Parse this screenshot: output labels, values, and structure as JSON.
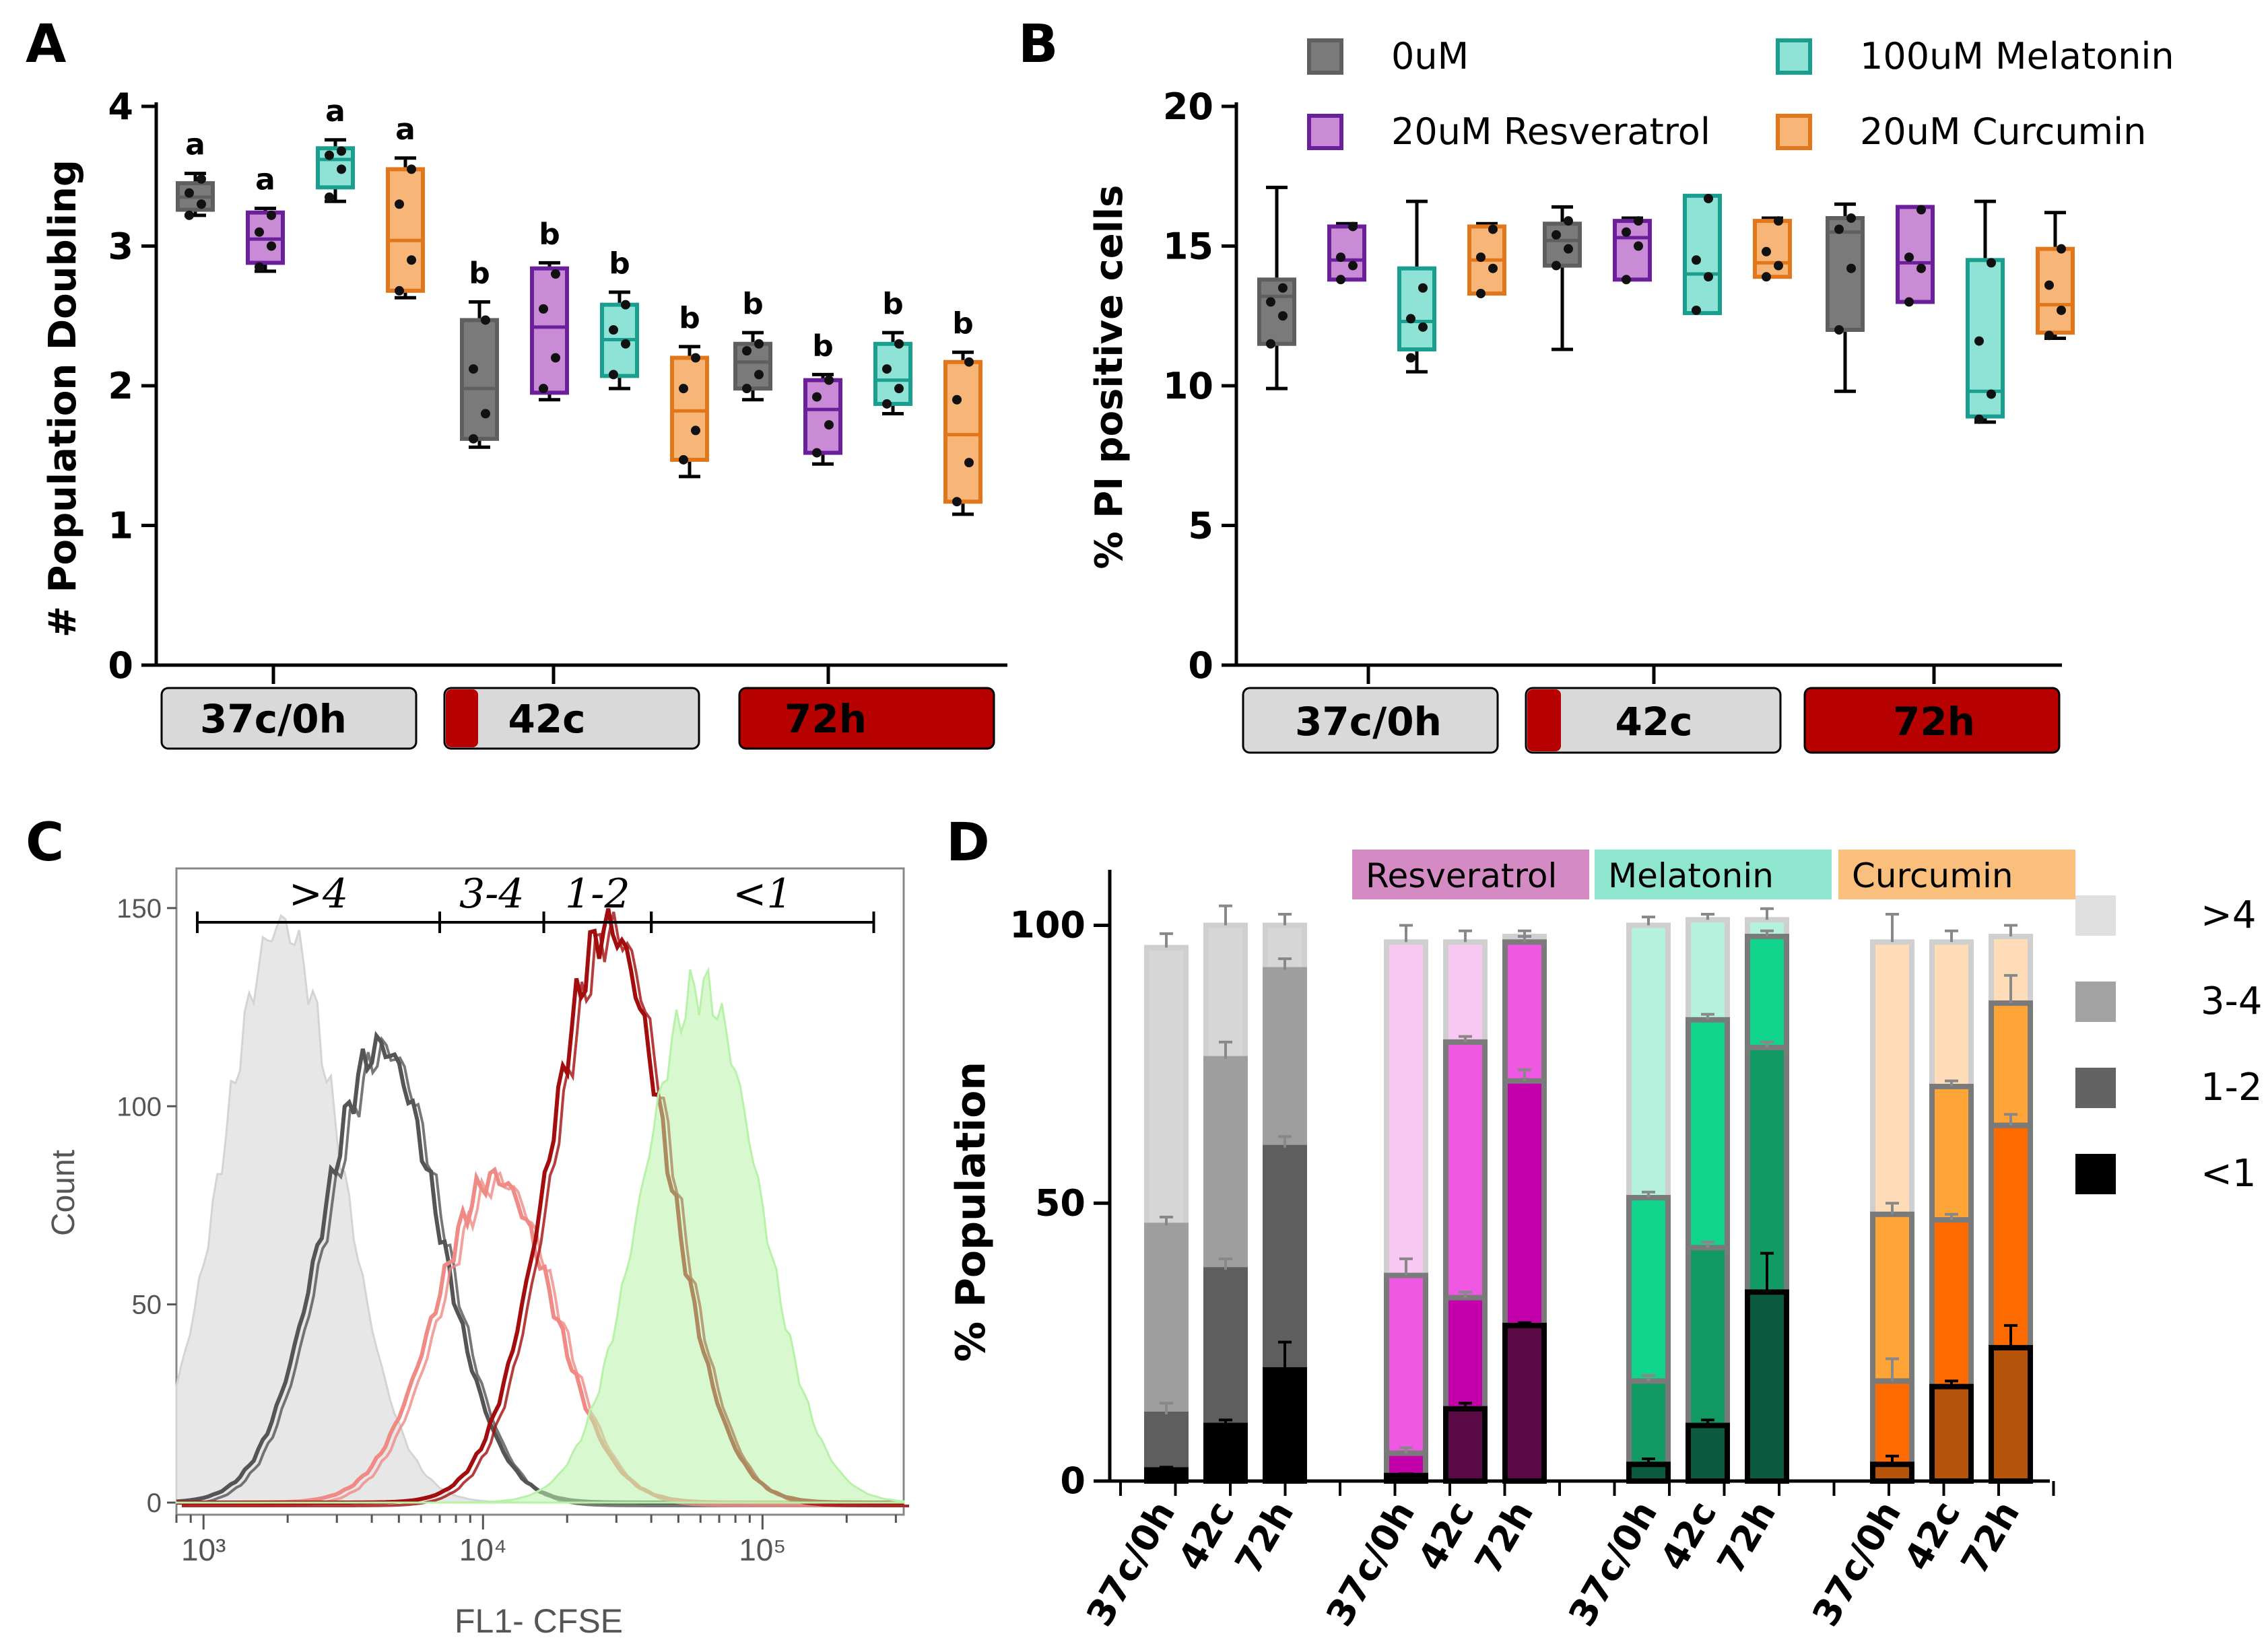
{
  "figure_labels": [
    "A",
    "B",
    "C",
    "D"
  ],
  "legend": {
    "items": [
      {
        "label": "0uM",
        "color": "#5f5f5f",
        "fill": "#7a7a7a"
      },
      {
        "label": "20uM Resveratrol",
        "color": "#6b1f9a",
        "fill": "#c98bd6"
      },
      {
        "label": "100uM Melatonin",
        "color": "#1a9e8f",
        "fill": "#8ee3d6"
      },
      {
        "label": "20uM Curcumin",
        "color": "#e2761a",
        "fill": "#f7b577"
      }
    ]
  },
  "conditions": [
    {
      "label": "37c/0h"
    },
    {
      "label": "42c"
    },
    {
      "label": "72h"
    }
  ],
  "colors": {
    "heat_red": "#b70000",
    "cond_grey": "#d9d9d9"
  },
  "chart_data": [
    {
      "panel": "A",
      "type": "boxplot",
      "ylabel": "# Population Doubling",
      "ylim": [
        0,
        4
      ],
      "yticks": [
        0,
        1,
        2,
        3,
        4
      ],
      "groups": [
        "37c/0h",
        "42c",
        "72h"
      ],
      "series": [
        "0uM",
        "20uM Resveratrol",
        "100uM Melatonin",
        "20uM Curcumin"
      ],
      "boxes": [
        {
          "group": 0,
          "series": 0,
          "min": 3.22,
          "q1": 3.26,
          "median": 3.35,
          "q3": 3.45,
          "max": 3.52,
          "points": [
            3.22,
            3.3,
            3.38,
            3.48
          ],
          "label": "a"
        },
        {
          "group": 0,
          "series": 1,
          "min": 2.82,
          "q1": 2.88,
          "median": 3.05,
          "q3": 3.24,
          "max": 3.27,
          "points": [
            2.85,
            3.0,
            3.1,
            3.22
          ],
          "label": "a"
        },
        {
          "group": 0,
          "series": 2,
          "min": 3.32,
          "q1": 3.42,
          "median": 3.62,
          "q3": 3.7,
          "max": 3.76,
          "points": [
            3.35,
            3.55,
            3.65,
            3.68
          ],
          "label": "a"
        },
        {
          "group": 0,
          "series": 3,
          "min": 2.63,
          "q1": 2.68,
          "median": 3.04,
          "q3": 3.55,
          "max": 3.63,
          "points": [
            2.68,
            2.9,
            3.3,
            3.55
          ],
          "label": "a"
        },
        {
          "group": 1,
          "series": 0,
          "min": 1.56,
          "q1": 1.62,
          "median": 1.98,
          "q3": 2.47,
          "max": 2.6,
          "points": [
            1.62,
            1.8,
            2.12,
            2.47
          ],
          "label": "b"
        },
        {
          "group": 1,
          "series": 1,
          "min": 1.9,
          "q1": 1.95,
          "median": 2.42,
          "q3": 2.84,
          "max": 2.88,
          "points": [
            1.98,
            2.2,
            2.55,
            2.8
          ],
          "label": "b"
        },
        {
          "group": 1,
          "series": 2,
          "min": 1.98,
          "q1": 2.07,
          "median": 2.33,
          "q3": 2.58,
          "max": 2.67,
          "points": [
            2.08,
            2.3,
            2.4,
            2.58
          ],
          "label": "b"
        },
        {
          "group": 1,
          "series": 3,
          "min": 1.35,
          "q1": 1.47,
          "median": 1.82,
          "q3": 2.2,
          "max": 2.28,
          "points": [
            1.47,
            1.68,
            1.98,
            2.2
          ],
          "label": "b"
        },
        {
          "group": 2,
          "series": 0,
          "min": 1.9,
          "q1": 1.98,
          "median": 2.17,
          "q3": 2.3,
          "max": 2.38,
          "points": [
            1.98,
            2.08,
            2.25,
            2.3
          ],
          "label": "b"
        },
        {
          "group": 2,
          "series": 1,
          "min": 1.44,
          "q1": 1.52,
          "median": 1.83,
          "q3": 2.04,
          "max": 2.08,
          "points": [
            1.52,
            1.72,
            1.92,
            2.04
          ],
          "label": "b"
        },
        {
          "group": 2,
          "series": 2,
          "min": 1.8,
          "q1": 1.87,
          "median": 2.04,
          "q3": 2.3,
          "max": 2.38,
          "points": [
            1.87,
            1.98,
            2.12,
            2.3
          ],
          "label": "b"
        },
        {
          "group": 2,
          "series": 3,
          "min": 1.08,
          "q1": 1.17,
          "median": 1.65,
          "q3": 2.17,
          "max": 2.24,
          "points": [
            1.17,
            1.45,
            1.9,
            2.17
          ],
          "label": "b"
        }
      ]
    },
    {
      "panel": "B",
      "type": "boxplot",
      "ylabel": "% PI positive cells",
      "ylim": [
        0,
        20
      ],
      "yticks": [
        0,
        5,
        10,
        15,
        20
      ],
      "groups": [
        "37c/0h",
        "42c",
        "72h"
      ],
      "series": [
        "0uM",
        "20uM Resveratrol",
        "100uM Melatonin",
        "20uM Curcumin"
      ],
      "boxes": [
        {
          "group": 0,
          "series": 0,
          "min": 9.9,
          "q1": 11.5,
          "median": 13.2,
          "q3": 13.8,
          "max": 17.1,
          "points": [
            11.5,
            12.5,
            13.0,
            13.5
          ]
        },
        {
          "group": 0,
          "series": 1,
          "min": 13.8,
          "q1": 13.8,
          "median": 14.5,
          "q3": 15.7,
          "max": 15.8,
          "points": [
            13.8,
            14.3,
            14.6,
            15.7
          ]
        },
        {
          "group": 0,
          "series": 2,
          "min": 10.5,
          "q1": 11.3,
          "median": 12.3,
          "q3": 14.2,
          "max": 16.6,
          "points": [
            11.0,
            12.1,
            12.4,
            13.5
          ]
        },
        {
          "group": 0,
          "series": 3,
          "min": 13.3,
          "q1": 13.3,
          "median": 14.5,
          "q3": 15.7,
          "max": 15.8,
          "points": [
            13.3,
            14.2,
            14.6,
            15.6
          ]
        },
        {
          "group": 1,
          "series": 0,
          "min": 11.3,
          "q1": 14.3,
          "median": 15.2,
          "q3": 15.8,
          "max": 16.4,
          "points": [
            14.3,
            14.9,
            15.4,
            15.9
          ]
        },
        {
          "group": 1,
          "series": 1,
          "min": 13.8,
          "q1": 13.8,
          "median": 15.3,
          "q3": 15.9,
          "max": 16.0,
          "points": [
            13.8,
            15.0,
            15.5,
            15.9
          ]
        },
        {
          "group": 1,
          "series": 2,
          "min": 12.6,
          "q1": 12.6,
          "median": 14.0,
          "q3": 16.8,
          "max": 16.8,
          "points": [
            12.7,
            13.9,
            14.5,
            16.7
          ]
        },
        {
          "group": 1,
          "series": 3,
          "min": 13.9,
          "q1": 13.9,
          "median": 14.4,
          "q3": 15.9,
          "max": 16.0,
          "points": [
            13.9,
            14.3,
            14.8,
            15.9
          ]
        },
        {
          "group": 2,
          "series": 0,
          "min": 9.8,
          "q1": 12.0,
          "median": 15.5,
          "q3": 16.0,
          "max": 16.5,
          "points": [
            12.0,
            14.2,
            15.6,
            16.0
          ]
        },
        {
          "group": 2,
          "series": 1,
          "min": 13.0,
          "q1": 13.0,
          "median": 14.4,
          "q3": 16.4,
          "max": 16.4,
          "points": [
            13.0,
            14.2,
            14.6,
            16.3
          ]
        },
        {
          "group": 2,
          "series": 2,
          "min": 8.7,
          "q1": 8.9,
          "median": 9.8,
          "q3": 14.5,
          "max": 16.6,
          "points": [
            8.8,
            9.7,
            11.6,
            14.4
          ]
        },
        {
          "group": 2,
          "series": 3,
          "min": 11.7,
          "q1": 11.9,
          "median": 12.9,
          "q3": 14.9,
          "max": 16.2,
          "points": [
            11.8,
            12.7,
            13.6,
            14.9
          ]
        }
      ]
    },
    {
      "panel": "C",
      "type": "histogram-overlay",
      "xlabel": "FL1- CFSE",
      "ylabel": "Count",
      "xscale": "log",
      "xlim": [
        800,
        320000
      ],
      "xticks": [
        {
          "value": 1000,
          "label": "10³"
        },
        {
          "value": 10000,
          "label": "10⁴"
        },
        {
          "value": 100000,
          "label": "10⁵"
        }
      ],
      "ylim": [
        0,
        160
      ],
      "yticks": [
        0,
        50,
        100,
        150
      ],
      "generations": [
        {
          "label": ">4",
          "from": 950,
          "to": 7000
        },
        {
          "label": "3-4",
          "from": 7000,
          "to": 16500
        },
        {
          "label": "1-2",
          "from": 16500,
          "to": 40000
        },
        {
          "label": "<1",
          "from": 40000,
          "to": 250000
        }
      ],
      "histograms": [
        {
          "name": "light grey",
          "peak_x": 1900,
          "peak_y": 146,
          "color": "#d4d4d4",
          "filled": true
        },
        {
          "name": "dark grey",
          "peak_x": 4300,
          "peak_y": 115,
          "color": "#555555",
          "filled": false
        },
        {
          "name": "salmon",
          "peak_x": 11000,
          "peak_y": 82,
          "color": "#f08a84",
          "filled": false
        },
        {
          "name": "dark red",
          "peak_x": 28000,
          "peak_y": 145,
          "color": "#a30d0d",
          "filled": false
        },
        {
          "name": "light green",
          "peak_x": 60000,
          "peak_y": 130,
          "color": "#b8f2a8",
          "filled": true
        }
      ]
    },
    {
      "panel": "D",
      "type": "stacked-bar",
      "ylabel": "% Population",
      "ylim": [
        0,
        110
      ],
      "yticks": [
        0,
        50,
        100
      ],
      "legend": [
        ">4",
        "3-4",
        "1-2",
        "<1"
      ],
      "treatment_tags": [
        "Resveratrol",
        "Melatonin",
        "Curcumin"
      ],
      "groups": [
        {
          "name": "0uM",
          "tag": null,
          "tag_color": null,
          "shades": [
            "#000000",
            "#5e5e5e",
            "#9e9e9e",
            "#d6d6d6"
          ],
          "bars": [
            {
              "label": "37c/0h",
              "cum": [
                2,
                12,
                46,
                96
              ],
              "err": [
                0.5,
                2,
                1.5,
                2.5
              ]
            },
            {
              "label": "42c",
              "cum": [
                10,
                38,
                76,
                100
              ],
              "err": [
                1,
                2,
                3,
                3.5
              ]
            },
            {
              "label": "72h",
              "cum": [
                20,
                60,
                92,
                100
              ],
              "err": [
                5,
                2,
                2,
                2
              ]
            }
          ]
        },
        {
          "name": "Resveratrol",
          "tag": "Resveratrol",
          "tag_color": "#d48bc3",
          "shades": [
            "#5a0a45",
            "#c400ab",
            "#ef58e3",
            "#f7c9f2"
          ],
          "bars": [
            {
              "label": "37c/0h",
              "cum": [
                1,
                5,
                37,
                97
              ],
              "err": [
                0.3,
                1,
                3,
                3
              ]
            },
            {
              "label": "42c",
              "cum": [
                13,
                33,
                79,
                97
              ],
              "err": [
                1,
                1,
                1,
                2
              ]
            },
            {
              "label": "72h",
              "cum": [
                28,
                72,
                97,
                98
              ],
              "err": [
                0.5,
                2,
                1,
                1
              ]
            }
          ]
        },
        {
          "name": "Melatonin",
          "tag": "Melatonin",
          "tag_color": "#8ee6cf",
          "shades": [
            "#0c5a3f",
            "#119a63",
            "#10d38c",
            "#b5f2dd"
          ],
          "bars": [
            {
              "label": "37c/0h",
              "cum": [
                3,
                18,
                51,
                100
              ],
              "err": [
                1,
                1,
                1,
                1.5
              ]
            },
            {
              "label": "42c",
              "cum": [
                10,
                42,
                83,
                101
              ],
              "err": [
                1,
                1,
                1,
                1
              ]
            },
            {
              "label": "72h",
              "cum": [
                34,
                78,
                98,
                101
              ],
              "err": [
                7,
                1,
                1,
                2
              ]
            }
          ]
        },
        {
          "name": "Curcumin",
          "tag": "Curcumin",
          "tag_color": "#fbbf7d",
          "shades": [
            "#b45309",
            "#ff6a00",
            "#ffa436",
            "#ffdcb8"
          ],
          "bars": [
            {
              "label": "37c/0h",
              "cum": [
                3,
                18,
                48,
                97
              ],
              "err": [
                1.5,
                4,
                2,
                5
              ]
            },
            {
              "label": "42c",
              "cum": [
                17,
                47,
                71,
                97
              ],
              "err": [
                1,
                1,
                1,
                2
              ]
            },
            {
              "label": "72h",
              "cum": [
                24,
                64,
                86,
                98
              ],
              "err": [
                4,
                2,
                5,
                2
              ]
            }
          ]
        }
      ]
    }
  ]
}
